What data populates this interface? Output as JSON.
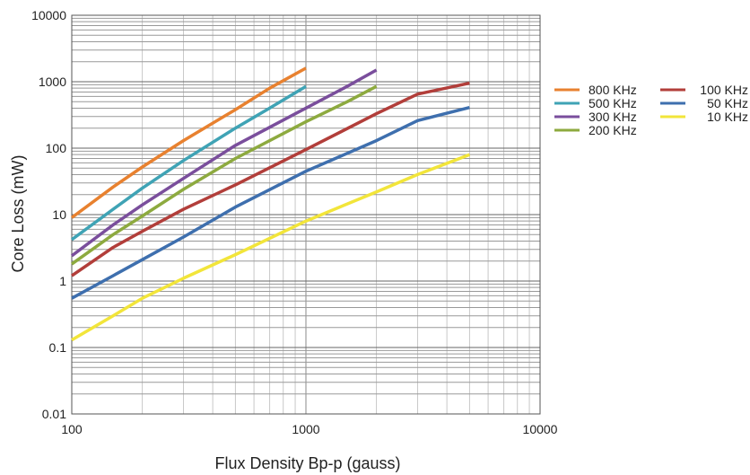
{
  "chart_data": {
    "type": "line",
    "title": "",
    "xlabel": "Flux Density Bp-p (gauss)",
    "ylabel": "Core Loss (mW)",
    "xscale": "log",
    "yscale": "log",
    "xlim": [
      100,
      10000
    ],
    "ylim": [
      0.01,
      10000
    ],
    "x_ticks": [
      {
        "value": 100,
        "label": "100"
      },
      {
        "value": 1000,
        "label": "1000"
      },
      {
        "value": 10000,
        "label": "10000"
      }
    ],
    "y_ticks": [
      {
        "value": 0.01,
        "label": "0.01"
      },
      {
        "value": 0.1,
        "label": "0.1"
      },
      {
        "value": 1,
        "label": "1"
      },
      {
        "value": 10,
        "label": "10"
      },
      {
        "value": 100,
        "label": "100"
      },
      {
        "value": 1000,
        "label": "1000"
      },
      {
        "value": 10000,
        "label": "10000"
      }
    ],
    "grid": true,
    "legend_position": "right",
    "series": [
      {
        "name": "800 KHz",
        "color": "#E8812F",
        "points": [
          [
            100,
            9
          ],
          [
            150,
            26
          ],
          [
            200,
            52
          ],
          [
            300,
            130
          ],
          [
            500,
            380
          ],
          [
            700,
            800
          ],
          [
            1000,
            1600
          ]
        ]
      },
      {
        "name": "500 KHz",
        "color": "#3FA3B5",
        "points": [
          [
            100,
            4.2
          ],
          [
            150,
            12
          ],
          [
            200,
            25
          ],
          [
            300,
            65
          ],
          [
            500,
            200
          ],
          [
            700,
            400
          ],
          [
            1000,
            850
          ]
        ]
      },
      {
        "name": "300 KHz",
        "color": "#7A4E9C",
        "points": [
          [
            100,
            2.4
          ],
          [
            150,
            7
          ],
          [
            200,
            14
          ],
          [
            300,
            35
          ],
          [
            500,
            110
          ],
          [
            1000,
            400
          ],
          [
            1500,
            850
          ],
          [
            2000,
            1500
          ]
        ]
      },
      {
        "name": "200 KHz",
        "color": "#8DAA3F",
        "points": [
          [
            100,
            1.8
          ],
          [
            150,
            5
          ],
          [
            200,
            9.5
          ],
          [
            300,
            24
          ],
          [
            500,
            70
          ],
          [
            1000,
            250
          ],
          [
            1500,
            500
          ],
          [
            2000,
            850
          ]
        ]
      },
      {
        "name": "100 KHz",
        "color": "#B23E3A",
        "points": [
          [
            100,
            1.2
          ],
          [
            150,
            3.2
          ],
          [
            200,
            5.6
          ],
          [
            300,
            12
          ],
          [
            500,
            28
          ],
          [
            1000,
            95
          ],
          [
            2000,
            330
          ],
          [
            3000,
            650
          ],
          [
            5000,
            950
          ]
        ]
      },
      {
        "name": "50 KHz",
        "color": "#3E6FAE",
        "points": [
          [
            100,
            0.55
          ],
          [
            150,
            1.2
          ],
          [
            200,
            2.1
          ],
          [
            300,
            4.6
          ],
          [
            500,
            13
          ],
          [
            1000,
            45
          ],
          [
            2000,
            130
          ],
          [
            3000,
            260
          ],
          [
            5000,
            410
          ]
        ]
      },
      {
        "name": "10 KHz",
        "color": "#F2E53A",
        "points": [
          [
            100,
            0.13
          ],
          [
            150,
            0.3
          ],
          [
            200,
            0.55
          ],
          [
            300,
            1.1
          ],
          [
            500,
            2.5
          ],
          [
            1000,
            8
          ],
          [
            2000,
            22
          ],
          [
            3000,
            40
          ],
          [
            5000,
            80
          ]
        ]
      }
    ]
  }
}
